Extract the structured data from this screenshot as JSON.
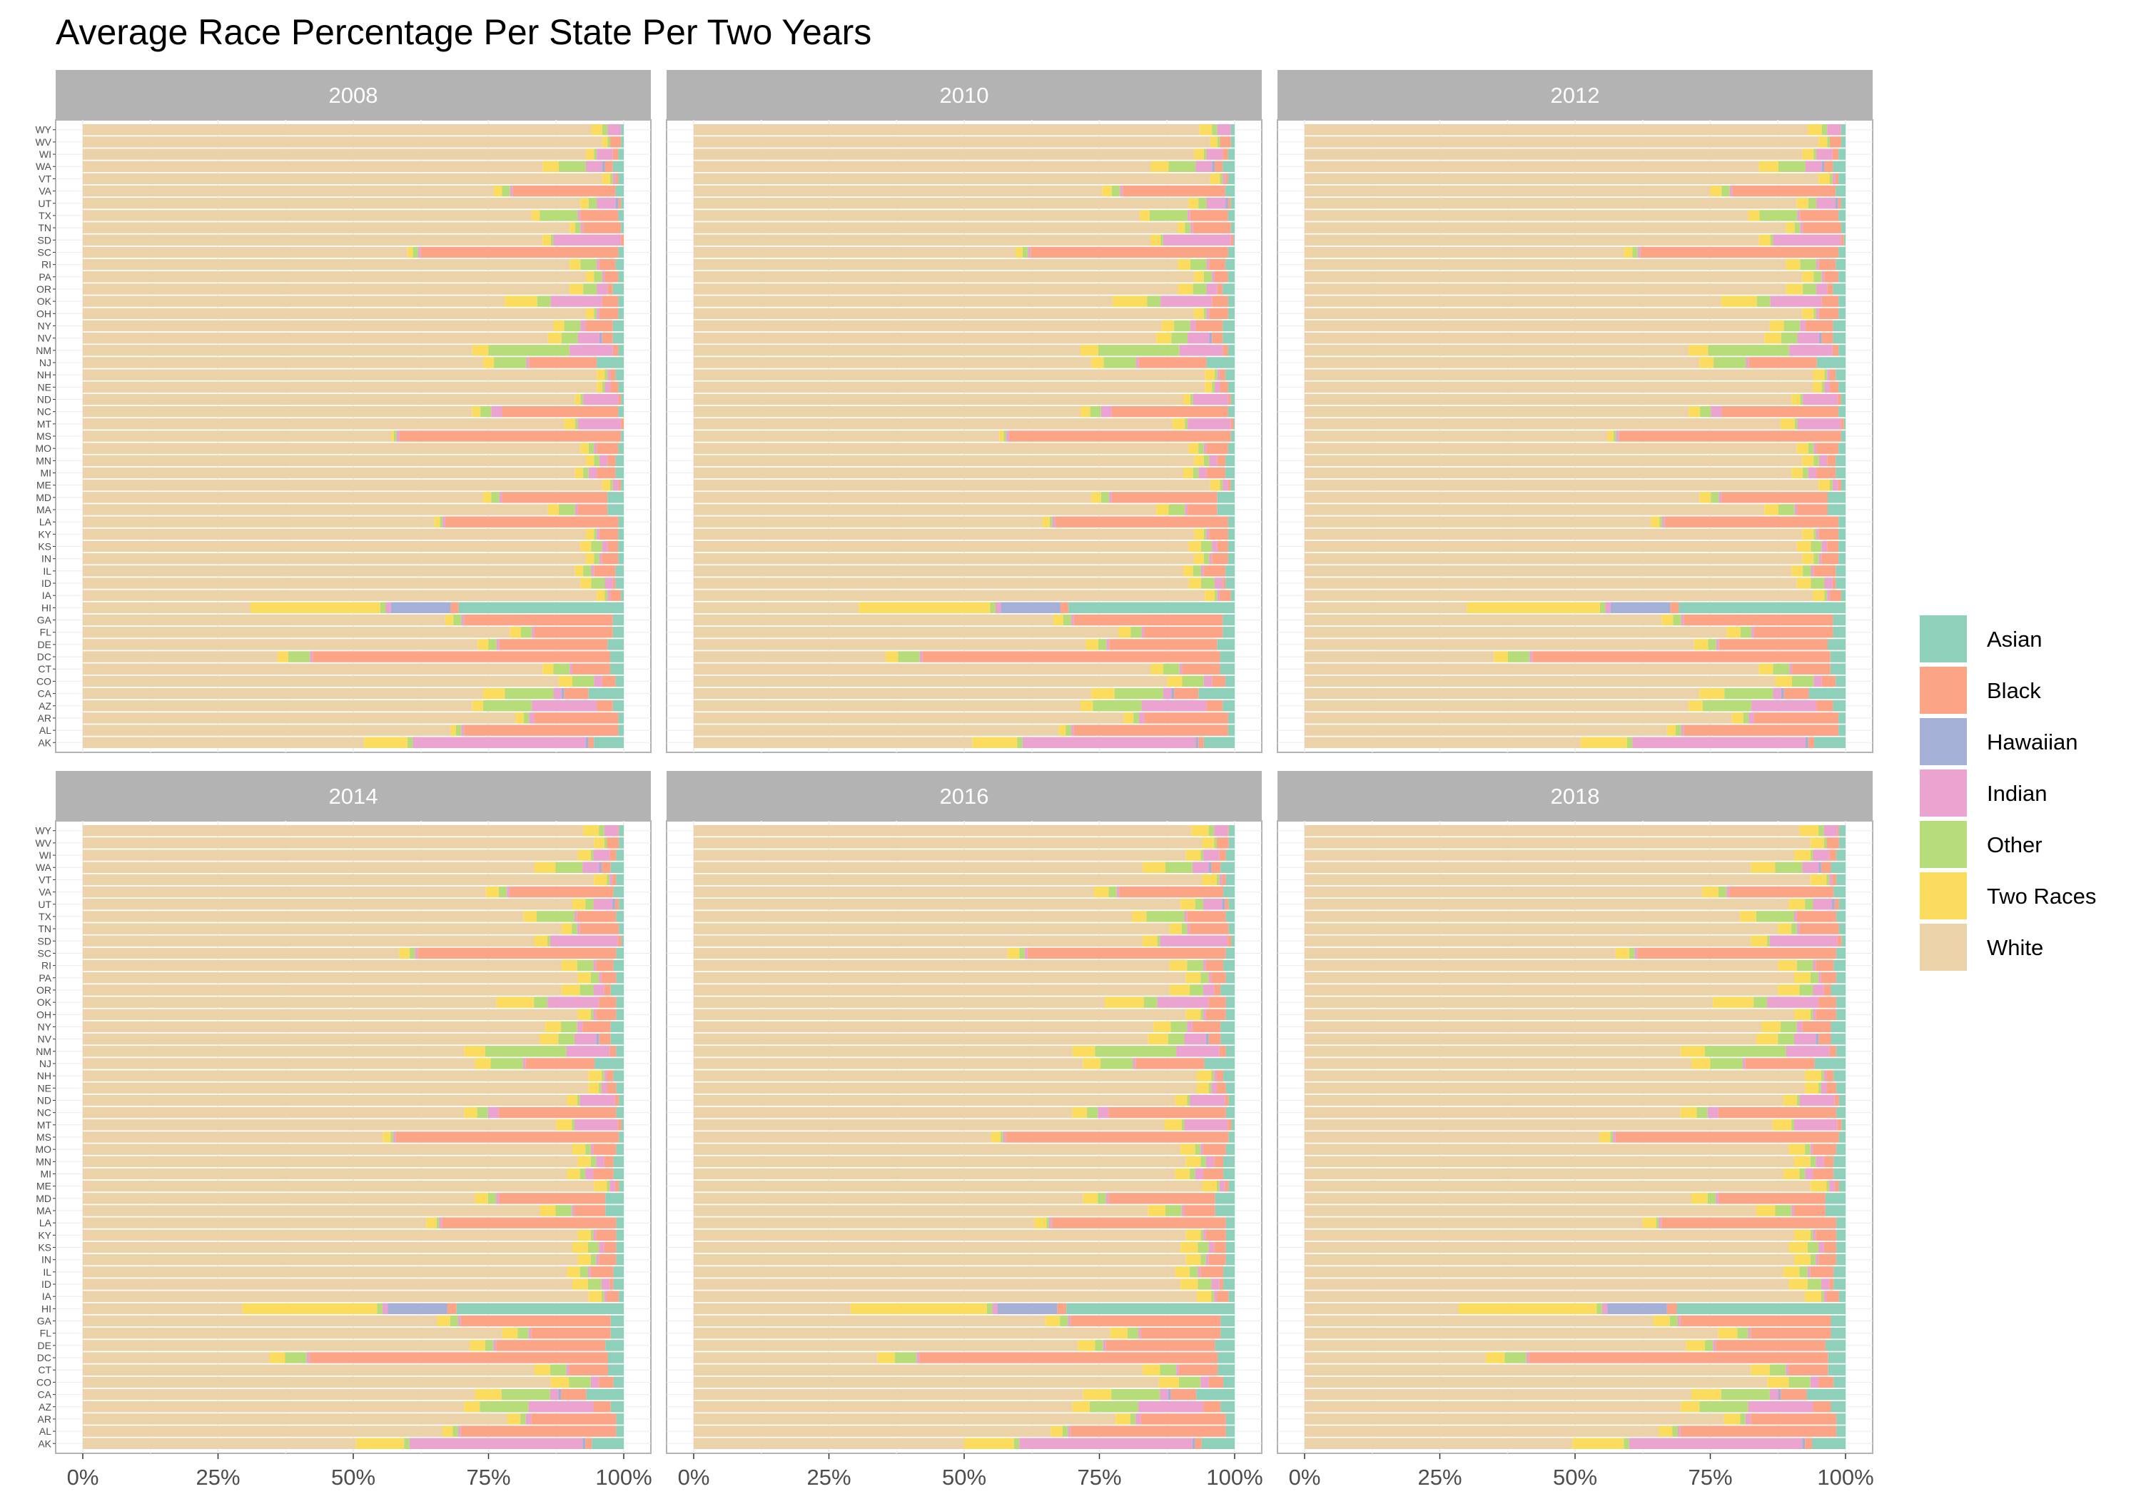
{
  "chart_data": {
    "type": "bar",
    "orientation": "horizontal",
    "stacked": "percent",
    "title": "Average Race Percentage Per State Per Two Years",
    "facets": [
      "2008",
      "2010",
      "2012",
      "2014",
      "2016",
      "2018"
    ],
    "states": [
      "AK",
      "AL",
      "AR",
      "AZ",
      "CA",
      "CO",
      "CT",
      "DC",
      "DE",
      "FL",
      "GA",
      "HI",
      "IA",
      "ID",
      "IL",
      "IN",
      "KS",
      "KY",
      "LA",
      "MA",
      "MD",
      "ME",
      "MI",
      "MN",
      "MO",
      "MS",
      "MT",
      "NC",
      "ND",
      "NE",
      "NH",
      "NJ",
      "NM",
      "NV",
      "NY",
      "OH",
      "OK",
      "OR",
      "PA",
      "RI",
      "SC",
      "SD",
      "TN",
      "TX",
      "UT",
      "VA",
      "VT",
      "WA",
      "WI",
      "WV",
      "WY"
    ],
    "stack_order": [
      "White",
      "Two Races",
      "Other",
      "Indian",
      "Hawaiian",
      "Black",
      "Asian"
    ],
    "xticks": [
      "0%",
      "25%",
      "50%",
      "75%",
      "100%"
    ],
    "xlim": [
      0,
      100
    ],
    "legend_position": "right",
    "grid": true,
    "legend": [
      {
        "name": "Asian",
        "color": "#8fd0ba"
      },
      {
        "name": "Black",
        "color": "#fca586"
      },
      {
        "name": "Hawaiian",
        "color": "#a5b0d6"
      },
      {
        "name": "Indian",
        "color": "#eba3cf"
      },
      {
        "name": "Other",
        "color": "#b7dc7a"
      },
      {
        "name": "Two Races",
        "color": "#fbdc5e"
      },
      {
        "name": "White",
        "color": "#ecd2a9"
      }
    ],
    "values_2008": {
      "AK": {
        "White": 52,
        "Two Races": 8,
        "Other": 1,
        "Indian": 32,
        "Hawaiian": 0.5,
        "Black": 1,
        "Asian": 5.5
      },
      "AL": {
        "White": 68,
        "Two Races": 1,
        "Other": 1,
        "Indian": 0.5,
        "Hawaiian": 0,
        "Black": 28.5,
        "Asian": 1
      },
      "AR": {
        "White": 80,
        "Two Races": 1.5,
        "Other": 1,
        "Indian": 1,
        "Hawaiian": 0,
        "Black": 15.5,
        "Asian": 1
      },
      "AZ": {
        "White": 72,
        "Two Races": 2,
        "Other": 9,
        "Indian": 12,
        "Hawaiian": 0,
        "Black": 3,
        "Asian": 2
      },
      "CA": {
        "White": 74,
        "Two Races": 4,
        "Other": 9,
        "Indian": 1.5,
        "Hawaiian": 0.5,
        "Black": 4.5,
        "Asian": 6.5
      },
      "CO": {
        "White": 88,
        "Two Races": 2.5,
        "Other": 4,
        "Indian": 1.5,
        "Hawaiian": 0,
        "Black": 2.5,
        "Asian": 1.5
      },
      "CT": {
        "White": 85,
        "Two Races": 2,
        "Other": 3,
        "Indian": 0.5,
        "Hawaiian": 0,
        "Black": 7,
        "Asian": 2.5
      },
      "DC": {
        "White": 36,
        "Two Races": 2,
        "Other": 4,
        "Indian": 0.5,
        "Hawaiian": 0,
        "Black": 55,
        "Asian": 2.5
      },
      "DE": {
        "White": 73,
        "Two Races": 2,
        "Other": 1.5,
        "Indian": 0.5,
        "Hawaiian": 0,
        "Black": 20,
        "Asian": 3
      },
      "FL": {
        "White": 79,
        "Two Races": 2,
        "Other": 2,
        "Indian": 0.5,
        "Hawaiian": 0,
        "Black": 14.5,
        "Asian": 2
      },
      "GA": {
        "White": 67,
        "Two Races": 1.5,
        "Other": 1.5,
        "Indian": 0.5,
        "Hawaiian": 0,
        "Black": 27.5,
        "Asian": 2
      },
      "HI": {
        "White": 31,
        "Two Races": 24,
        "Other": 1,
        "Indian": 1,
        "Hawaiian": 11,
        "Black": 1.5,
        "Asian": 30.5
      },
      "IA": {
        "White": 95,
        "Two Races": 1.5,
        "Other": 0.5,
        "Indian": 0.5,
        "Hawaiian": 0,
        "Black": 2,
        "Asian": 0.5
      },
      "ID": {
        "White": 92,
        "Two Races": 2,
        "Other": 2.5,
        "Indian": 1.5,
        "Hawaiian": 0,
        "Black": 0.5,
        "Asian": 1.5
      },
      "IL": {
        "White": 91,
        "Two Races": 1.5,
        "Other": 1.5,
        "Indian": 0.5,
        "Hawaiian": 0,
        "Black": 4,
        "Asian": 1.5
      },
      "IN": {
        "White": 93,
        "Two Races": 1.5,
        "Other": 1,
        "Indian": 0.5,
        "Hawaiian": 0,
        "Black": 3,
        "Asian": 1
      },
      "KS": {
        "White": 92,
        "Two Races": 2,
        "Other": 2,
        "Indian": 1,
        "Hawaiian": 0,
        "Black": 2,
        "Asian": 1
      },
      "KY": {
        "White": 93,
        "Two Races": 1.5,
        "Other": 0.5,
        "Indian": 0.5,
        "Hawaiian": 0,
        "Black": 3.5,
        "Asian": 1
      },
      "LA": {
        "White": 65,
        "Two Races": 1,
        "Other": 0.5,
        "Indian": 0.5,
        "Hawaiian": 0,
        "Black": 32,
        "Asian": 1
      },
      "MA": {
        "White": 86,
        "Two Races": 2,
        "Other": 3,
        "Indian": 0.5,
        "Hawaiian": 0,
        "Black": 5.5,
        "Asian": 3
      },
      "MD": {
        "White": 74,
        "Two Races": 1.5,
        "Other": 1.5,
        "Indian": 0.5,
        "Hawaiian": 0,
        "Black": 19.5,
        "Asian": 3
      },
      "ME": {
        "White": 96,
        "Two Races": 1.5,
        "Other": 0.5,
        "Indian": 1,
        "Hawaiian": 0,
        "Black": 0.5,
        "Asian": 0.5
      },
      "MI": {
        "White": 91,
        "Two Races": 1.5,
        "Other": 1,
        "Indian": 1.5,
        "Hawaiian": 0,
        "Black": 3.5,
        "Asian": 1.5
      },
      "MN": {
        "White": 93,
        "Two Races": 1.5,
        "Other": 1,
        "Indian": 1.5,
        "Hawaiian": 0,
        "Black": 1.5,
        "Asian": 1.5
      },
      "MO": {
        "White": 92,
        "Two Races": 1.5,
        "Other": 1,
        "Indian": 0.5,
        "Hawaiian": 0,
        "Black": 4,
        "Asian": 1
      },
      "MS": {
        "White": 57,
        "Two Races": 0.5,
        "Other": 0.5,
        "Indian": 0.5,
        "Hawaiian": 0,
        "Black": 41,
        "Asian": 0.5
      },
      "MT": {
        "White": 89,
        "Two Races": 2,
        "Other": 0.5,
        "Indian": 8,
        "Hawaiian": 0,
        "Black": 0.5,
        "Asian": 0
      },
      "NC": {
        "White": 72,
        "Two Races": 1.5,
        "Other": 2,
        "Indian": 2,
        "Hawaiian": 0,
        "Black": 21.5,
        "Asian": 1
      },
      "ND": {
        "White": 91,
        "Two Races": 1,
        "Other": 0.5,
        "Indian": 6.5,
        "Hawaiian": 0,
        "Black": 0.5,
        "Asian": 0.5
      },
      "NE": {
        "White": 95,
        "Two Races": 1,
        "Other": 0.5,
        "Indian": 1,
        "Hawaiian": 0,
        "Black": 1.5,
        "Asian": 1
      },
      "NH": {
        "White": 95,
        "Two Races": 1.5,
        "Other": 0.5,
        "Indian": 0.5,
        "Hawaiian": 0,
        "Black": 1,
        "Asian": 1.5
      },
      "NJ": {
        "White": 74,
        "Two Races": 2,
        "Other": 6,
        "Indian": 0.5,
        "Hawaiian": 0,
        "Black": 12.5,
        "Asian": 5
      },
      "NM": {
        "White": 72,
        "Two Races": 3,
        "Other": 15,
        "Indian": 8,
        "Hawaiian": 0,
        "Black": 1,
        "Asian": 1
      },
      "NV": {
        "White": 86,
        "Two Races": 2.5,
        "Other": 3,
        "Indian": 4,
        "Hawaiian": 0.5,
        "Black": 2,
        "Asian": 2
      },
      "NY": {
        "White": 87,
        "Two Races": 2,
        "Other": 3,
        "Indian": 1,
        "Hawaiian": 0,
        "Black": 5,
        "Asian": 2
      },
      "OH": {
        "White": 93,
        "Two Races": 1.5,
        "Other": 0.5,
        "Indian": 0.5,
        "Hawaiian": 0,
        "Black": 3.5,
        "Asian": 1
      },
      "OK": {
        "White": 78,
        "Two Races": 6,
        "Other": 2.5,
        "Indian": 9.5,
        "Hawaiian": 0,
        "Black": 3,
        "Asian": 1
      },
      "OR": {
        "White": 90,
        "Two Races": 2.5,
        "Other": 2.5,
        "Indian": 2,
        "Hawaiian": 0,
        "Black": 1,
        "Asian": 2
      },
      "PA": {
        "White": 93,
        "Two Races": 1.5,
        "Other": 1.5,
        "Indian": 0.5,
        "Hawaiian": 0,
        "Black": 2.5,
        "Asian": 1
      },
      "RI": {
        "White": 90,
        "Two Races": 2,
        "Other": 3,
        "Indian": 0.5,
        "Hawaiian": 0,
        "Black": 3,
        "Asian": 1.5
      },
      "SC": {
        "White": 60,
        "Two Races": 1,
        "Other": 1,
        "Indian": 0.5,
        "Hawaiian": 0,
        "Black": 36.5,
        "Asian": 1
      },
      "SD": {
        "White": 85,
        "Two Races": 1.5,
        "Other": 0.5,
        "Indian": 12.5,
        "Hawaiian": 0,
        "Black": 0.5,
        "Asian": 0
      },
      "TN": {
        "White": 90,
        "Two Races": 1,
        "Other": 1,
        "Indian": 0.5,
        "Hawaiian": 0,
        "Black": 7,
        "Asian": 0.5
      },
      "TX": {
        "White": 83,
        "Two Races": 1.5,
        "Other": 7,
        "Indian": 0.5,
        "Hawaiian": 0,
        "Black": 7,
        "Asian": 1
      },
      "UT": {
        "White": 92,
        "Two Races": 1.5,
        "Other": 1.5,
        "Indian": 3.5,
        "Hawaiian": 0.5,
        "Black": 0.5,
        "Asian": 0.5
      },
      "VA": {
        "White": 76,
        "Two Races": 1.5,
        "Other": 1.5,
        "Indian": 0.5,
        "Hawaiian": 0,
        "Black": 19,
        "Asian": 1.5
      },
      "VT": {
        "White": 96,
        "Two Races": 1.5,
        "Other": 0.5,
        "Indian": 0.5,
        "Hawaiian": 0,
        "Black": 0.5,
        "Asian": 1
      },
      "WA": {
        "White": 85,
        "Two Races": 3,
        "Other": 5,
        "Indian": 3,
        "Hawaiian": 0.5,
        "Black": 1.5,
        "Asian": 2
      },
      "WI": {
        "White": 93,
        "Two Races": 1.5,
        "Other": 0.5,
        "Indian": 3,
        "Hawaiian": 0,
        "Black": 1,
        "Asian": 1
      },
      "WV": {
        "White": 96,
        "Two Races": 1,
        "Other": 0.5,
        "Indian": 0,
        "Hawaiian": 0,
        "Black": 2,
        "Asian": 0.5
      },
      "WY": {
        "White": 94,
        "Two Races": 2,
        "Other": 1,
        "Indian": 2.5,
        "Hawaiian": 0,
        "Black": 0,
        "Asian": 0.5
      }
    },
    "year_shift": {
      "2008": {
        "White": 0,
        "Two Races": 0,
        "Asian": 0,
        "Black": 0
      },
      "2010": {
        "White": -0.5,
        "Two Races": 0.3,
        "Asian": 0.2,
        "Black": 0
      },
      "2012": {
        "White": -1,
        "Two Races": 0.6,
        "Asian": 0.3,
        "Black": 0.1
      },
      "2014": {
        "White": -1.5,
        "Two Races": 0.9,
        "Asian": 0.4,
        "Black": 0.2
      },
      "2016": {
        "White": -2,
        "Two Races": 1.2,
        "Asian": 0.6,
        "Black": 0.2
      },
      "2018": {
        "White": -2.5,
        "Two Races": 1.5,
        "Asian": 0.7,
        "Black": 0.3
      }
    }
  }
}
